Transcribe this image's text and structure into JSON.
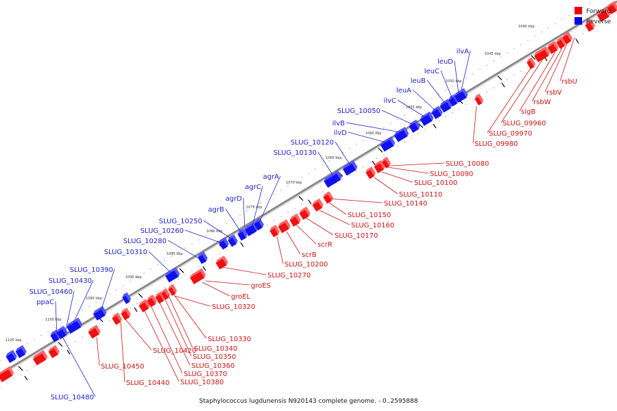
{
  "legend": [
    {
      "label": "Forward",
      "color": "#ee0000"
    },
    {
      "label": "Reverse",
      "color": "#0000ee"
    }
  ],
  "caption": "Staphylococcus lugdunensis N920143 complete genome. - 0..2595888",
  "colors": {
    "forward": "#ee0000",
    "reverse": "#0000ee",
    "backbone": "#888888"
  },
  "tick_labels": [
    "1040 kbp",
    "1045 kbp",
    "1050 kbp",
    "1055 kbp",
    "1060 kbp",
    "1065 kbp",
    "1070 kbp",
    "1075 kbp",
    "1080 kbp",
    "1085 kbp",
    "1090 kbp",
    "1095 kbp",
    "1100 kbp",
    "1105 kbp"
  ],
  "reverse_genes": [
    "SLUG_10480",
    "SLUG_10460",
    "ppaC",
    "SLUG_10430",
    "SLUG_10390",
    "SLUG_10310",
    "SLUG_10280",
    "SLUG_10260",
    "SLUG_10250",
    "agrB",
    "agrD",
    "agrC",
    "agrA",
    "SLUG_10130",
    "SLUG_10120",
    "ilvD",
    "ilvB",
    "SLUG_10050",
    "ilvC",
    "leuA",
    "leuB",
    "leuC",
    "leuD",
    "ilvA"
  ],
  "forward_genes": [
    "SLUG_10450",
    "SLUG_10440",
    "SLUG_10420",
    "SLUG_10380",
    "SLUG_10370",
    "SLUG_10360",
    "SLUG_10350",
    "SLUG_10340",
    "SLUG_10330",
    "SLUG_10320",
    "groEL",
    "groES",
    "SLUG_10270",
    "SLUG_10200",
    "scrB",
    "scrR",
    "SLUG_10170",
    "SLUG_10160",
    "SLUG_10150",
    "SLUG_10140",
    "SLUG_10110",
    "SLUG_10100",
    "SLUG_10090",
    "SLUG_10080",
    "SLUG_09980",
    "SLUG_09970",
    "SLUG_09960",
    "sigB",
    "rsbW",
    "rsbV",
    "rsbU"
  ]
}
